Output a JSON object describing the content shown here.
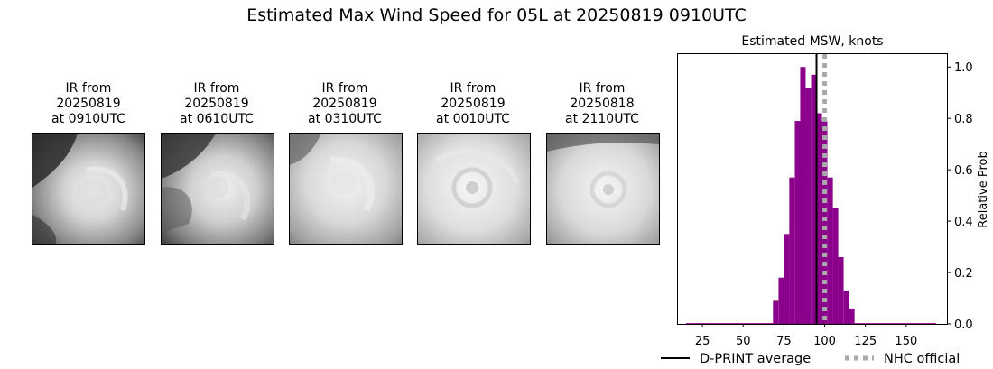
{
  "figure": {
    "title": "Estimated Max Wind Speed for 05L at 20250819 0910UTC"
  },
  "ir_panels": [
    {
      "line1": "IR from",
      "line2": "20250819",
      "line3": "at 0910UTC"
    },
    {
      "line1": "IR from",
      "line2": "20250819",
      "line3": "at 0610UTC"
    },
    {
      "line1": "IR from",
      "line2": "20250819",
      "line3": "at 0310UTC"
    },
    {
      "line1": "IR from",
      "line2": "20250819",
      "line3": "at 0010UTC"
    },
    {
      "line1": "IR from",
      "line2": "20250818",
      "line3": "at 2110UTC"
    }
  ],
  "chart_data": {
    "type": "bar",
    "title": "Estimated MSW, knots",
    "xlabel": "",
    "ylabel": "Relative Prob",
    "xlim": [
      10,
      175
    ],
    "ylim": [
      0,
      1.05
    ],
    "xticks": [
      25,
      50,
      75,
      100,
      125,
      150
    ],
    "yticks": [
      0.0,
      0.2,
      0.4,
      0.6,
      0.8,
      1.0
    ],
    "ytick_labels": [
      "0.0",
      "0.2",
      "0.4",
      "0.6",
      "0.8",
      "1.0"
    ],
    "bin_width": 3.33,
    "bins": [
      {
        "x0": 15.0,
        "value": 0.003
      },
      {
        "x0": 18.3,
        "value": 0.003
      },
      {
        "x0": 21.7,
        "value": 0.003
      },
      {
        "x0": 25.0,
        "value": 0.003
      },
      {
        "x0": 28.3,
        "value": 0.003
      },
      {
        "x0": 31.7,
        "value": 0.003
      },
      {
        "x0": 35.0,
        "value": 0.003
      },
      {
        "x0": 38.3,
        "value": 0.003
      },
      {
        "x0": 41.7,
        "value": 0.003
      },
      {
        "x0": 45.0,
        "value": 0.003
      },
      {
        "x0": 48.3,
        "value": 0.003
      },
      {
        "x0": 51.7,
        "value": 0.003
      },
      {
        "x0": 55.0,
        "value": 0.003
      },
      {
        "x0": 58.3,
        "value": 0.003
      },
      {
        "x0": 61.7,
        "value": 0.003
      },
      {
        "x0": 65.0,
        "value": 0.003
      },
      {
        "x0": 68.3,
        "value": 0.09
      },
      {
        "x0": 71.7,
        "value": 0.18
      },
      {
        "x0": 75.0,
        "value": 0.35
      },
      {
        "x0": 78.3,
        "value": 0.57
      },
      {
        "x0": 81.7,
        "value": 0.79
      },
      {
        "x0": 85.0,
        "value": 1.0
      },
      {
        "x0": 88.3,
        "value": 0.92
      },
      {
        "x0": 91.7,
        "value": 0.97
      },
      {
        "x0": 95.0,
        "value": 0.82
      },
      {
        "x0": 98.3,
        "value": 0.79
      },
      {
        "x0": 101.7,
        "value": 0.57
      },
      {
        "x0": 105.0,
        "value": 0.45
      },
      {
        "x0": 108.3,
        "value": 0.26
      },
      {
        "x0": 111.7,
        "value": 0.13
      },
      {
        "x0": 115.0,
        "value": 0.06
      },
      {
        "x0": 118.3,
        "value": 0.003
      },
      {
        "x0": 121.7,
        "value": 0.003
      },
      {
        "x0": 125.0,
        "value": 0.003
      },
      {
        "x0": 128.3,
        "value": 0.003
      },
      {
        "x0": 131.7,
        "value": 0.003
      },
      {
        "x0": 135.0,
        "value": 0.003
      },
      {
        "x0": 138.3,
        "value": 0.003
      },
      {
        "x0": 141.7,
        "value": 0.003
      },
      {
        "x0": 145.0,
        "value": 0.003
      },
      {
        "x0": 148.3,
        "value": 0.003
      },
      {
        "x0": 151.7,
        "value": 0.003
      },
      {
        "x0": 155.0,
        "value": 0.003
      },
      {
        "x0": 158.3,
        "value": 0.003
      },
      {
        "x0": 161.7,
        "value": 0.003
      },
      {
        "x0": 165.0,
        "value": 0.003
      }
    ],
    "bar_color": "#8b008b",
    "reference_lines": [
      {
        "label": "D-PRINT average",
        "x": 95,
        "color": "#000000",
        "style": "solid"
      },
      {
        "label": "NHC official",
        "x": 100,
        "color": "#a9a9a9",
        "style": "dotted"
      }
    ],
    "legend": {
      "placement": "bottom",
      "entries": [
        "D-PRINT average",
        "NHC official"
      ]
    }
  }
}
